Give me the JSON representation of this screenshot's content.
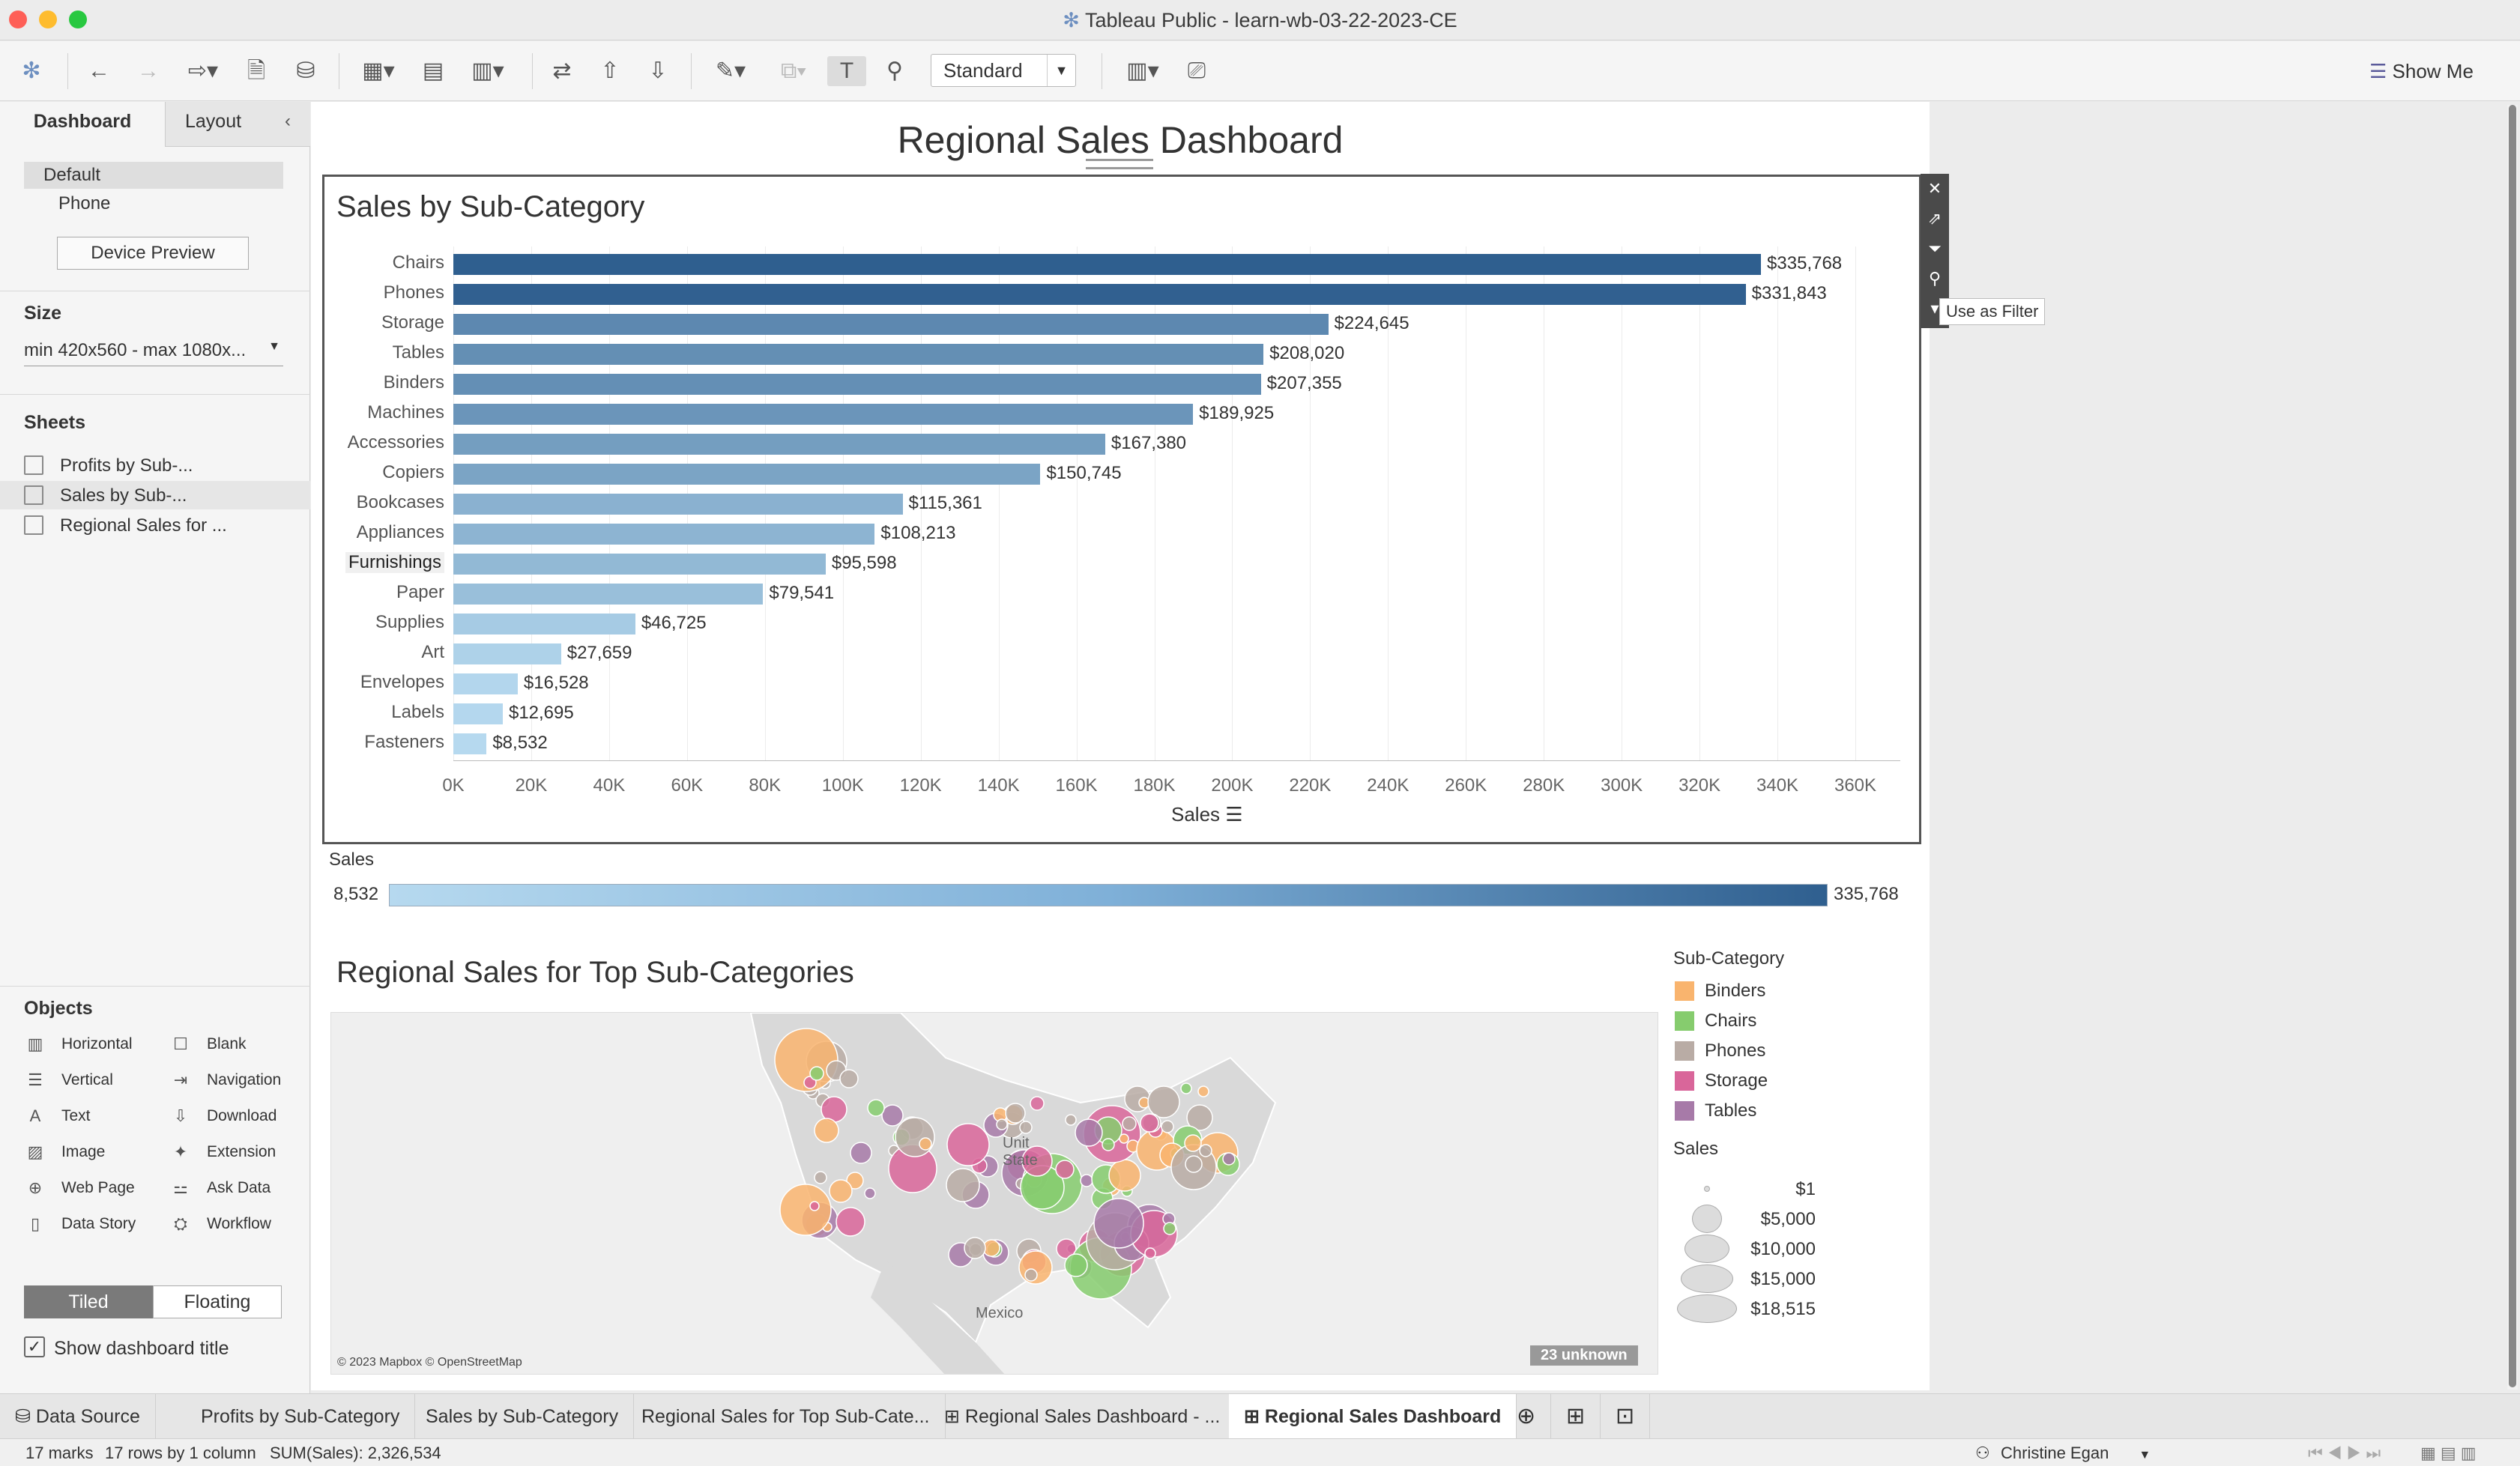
{
  "window": {
    "title": "Tableau Public - learn-wb-03-22-2023-CE"
  },
  "toolbar": {
    "marks_mode": "Standard",
    "show_me": "Show Me"
  },
  "left_panel": {
    "tabs": [
      "Dashboard",
      "Layout"
    ],
    "device_options": [
      "Default",
      "Phone"
    ],
    "device_preview": "Device Preview",
    "size_heading": "Size",
    "size_value": "min 420x560 - max 1080x...",
    "sheets_heading": "Sheets",
    "sheets": [
      "Profits by Sub-...",
      "Sales by Sub-...",
      "Regional Sales for ..."
    ],
    "objects_heading": "Objects",
    "objects": [
      {
        "label": "Horizontal",
        "icon": "horizontal-icon"
      },
      {
        "label": "Blank",
        "icon": "blank-icon"
      },
      {
        "label": "Vertical",
        "icon": "vertical-icon"
      },
      {
        "label": "Navigation",
        "icon": "navigation-icon"
      },
      {
        "label": "Text",
        "icon": "text-icon"
      },
      {
        "label": "Download",
        "icon": "download-icon"
      },
      {
        "label": "Image",
        "icon": "image-icon"
      },
      {
        "label": "Extension",
        "icon": "extension-icon"
      },
      {
        "label": "Web Page",
        "icon": "globe-icon"
      },
      {
        "label": "Ask Data",
        "icon": "ask-data-icon"
      },
      {
        "label": "Data Story",
        "icon": "book-icon"
      },
      {
        "label": "Workflow",
        "icon": "workflow-icon"
      }
    ],
    "layout_modes": [
      "Tiled",
      "Floating"
    ],
    "show_title_label": "Show dashboard title"
  },
  "dashboard": {
    "title": "Regional Sales Dashboard",
    "control_tooltip": "Use as Filter",
    "sales_legend": {
      "title": "Sales",
      "min": "8,532",
      "max": "335,768"
    },
    "map": {
      "title": "Regional Sales for Top Sub-Categories",
      "attribution": "© 2023 Mapbox © OpenStreetMap",
      "unknown_badge": "23 unknown",
      "labels": [
        "Unit",
        "State",
        "Mexico"
      ],
      "color_legend_title": "Sub-Category",
      "color_legend": [
        {
          "label": "Binders",
          "color": "#f9b46e"
        },
        {
          "label": "Chairs",
          "color": "#86cc6e"
        },
        {
          "label": "Phones",
          "color": "#b9aca5"
        },
        {
          "label": "Storage",
          "color": "#d9669a"
        },
        {
          "label": "Tables",
          "color": "#a77aa8"
        }
      ],
      "size_legend_title": "Sales",
      "size_legend": [
        "$1",
        "$5,000",
        "$10,000",
        "$15,000",
        "$18,515"
      ]
    }
  },
  "chart_data": {
    "type": "bar",
    "title": "Sales by Sub-Category",
    "xlabel": "Sales",
    "xlim": [
      0,
      360000
    ],
    "categories": [
      "Chairs",
      "Phones",
      "Storage",
      "Tables",
      "Binders",
      "Machines",
      "Accessories",
      "Copiers",
      "Bookcases",
      "Appliances",
      "Furnishings",
      "Paper",
      "Supplies",
      "Art",
      "Envelopes",
      "Labels",
      "Fasteners"
    ],
    "values": [
      335768,
      331843,
      224645,
      208020,
      207355,
      189925,
      167380,
      150745,
      115361,
      108213,
      95598,
      79541,
      46725,
      27659,
      16528,
      12695,
      8532
    ],
    "value_labels": [
      "$335,768",
      "$331,843",
      "$224,645",
      "$208,020",
      "$207,355",
      "$189,925",
      "$167,380",
      "$150,745",
      "$115,361",
      "$108,213",
      "$95,598",
      "$79,541",
      "$46,725",
      "$27,659",
      "$16,528",
      "$12,695",
      "$8,532"
    ],
    "x_ticks": [
      "0K",
      "20K",
      "40K",
      "60K",
      "80K",
      "100K",
      "120K",
      "140K",
      "160K",
      "180K",
      "200K",
      "220K",
      "240K",
      "260K",
      "280K",
      "300K",
      "320K",
      "340K",
      "360K"
    ],
    "color_scale": [
      "#b6d9ef",
      "#2f5f8f"
    ],
    "grid": true
  },
  "bottom_tabs": [
    "Data Source",
    "Profits by Sub-Category",
    "Sales by Sub-Category",
    "Regional Sales for Top Sub-Cate...",
    "Regional Sales Dashboard - ...",
    "Regional Sales Dashboard"
  ],
  "status": {
    "marks": "17 marks",
    "rows": "17 rows by 1 column",
    "sum": "SUM(Sales): 2,326,534",
    "user": "Christine Egan"
  }
}
